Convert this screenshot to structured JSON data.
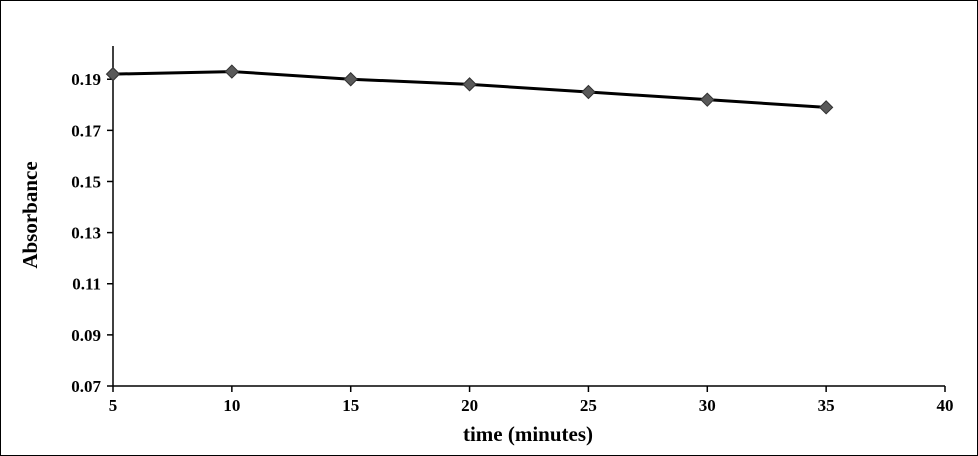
{
  "figure": {
    "background": "#ffffff",
    "border_color": "#000000"
  },
  "chart_data": {
    "type": "line",
    "title": "",
    "xlabel": "time (minutes)",
    "ylabel": "Absorbance",
    "x": [
      5,
      10,
      15,
      20,
      25,
      30,
      35
    ],
    "values": [
      0.192,
      0.193,
      0.19,
      0.188,
      0.185,
      0.182,
      0.179
    ],
    "x_ticks": [
      5,
      10,
      15,
      20,
      25,
      30,
      35,
      40
    ],
    "y_ticks": [
      0.07,
      0.09,
      0.11,
      0.13,
      0.15,
      0.17,
      0.19
    ],
    "xlim": [
      5,
      40
    ],
    "ylim": [
      0.07,
      0.203
    ],
    "grid": false,
    "legend": "none",
    "line_color": "#000000",
    "marker": "diamond",
    "marker_color": "#595959",
    "marker_edge_color": "#303030"
  }
}
